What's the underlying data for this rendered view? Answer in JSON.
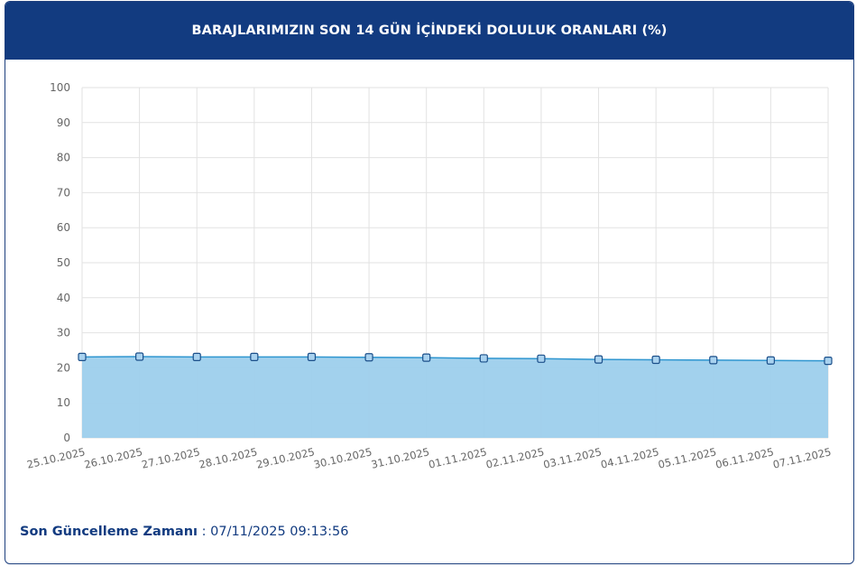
{
  "header": {
    "title": "BARAJLARIMIZIN SON 14 GÜN İÇİNDEKİ DOLULUK ORANLARI (%)"
  },
  "footer": {
    "label": "Son Güncelleme Zamanı",
    "separator": " : ",
    "value": "07/11/2025 09:13:56"
  },
  "chart_data": {
    "type": "area",
    "title": "BARAJLARIMIZIN SON 14 GÜN İÇİNDEKİ DOLULUK ORANLARI (%)",
    "xlabel": "",
    "ylabel": "",
    "ylim": [
      0,
      100
    ],
    "yticks": [
      0,
      10,
      20,
      30,
      40,
      50,
      60,
      70,
      80,
      90,
      100
    ],
    "grid": true,
    "x": [
      "25.10.2025",
      "26.10.2025",
      "27.10.2025",
      "28.10.2025",
      "29.10.2025",
      "30.10.2025",
      "31.10.2025",
      "01.11.2025",
      "02.11.2025",
      "03.11.2025",
      "04.11.2025",
      "05.11.2025",
      "06.11.2025",
      "07.11.2025"
    ],
    "series": [
      {
        "values": [
          23.1,
          23.2,
          23.1,
          23.1,
          23.1,
          23.0,
          22.9,
          22.7,
          22.6,
          22.4,
          22.3,
          22.2,
          22.1,
          22.0
        ]
      }
    ],
    "colors": {
      "line": "#2f96d0",
      "fill": "#9dcfec",
      "marker_fill": "#a9d2ef",
      "marker_stroke": "#1b4f8a",
      "grid": "#e2e2e2"
    }
  }
}
